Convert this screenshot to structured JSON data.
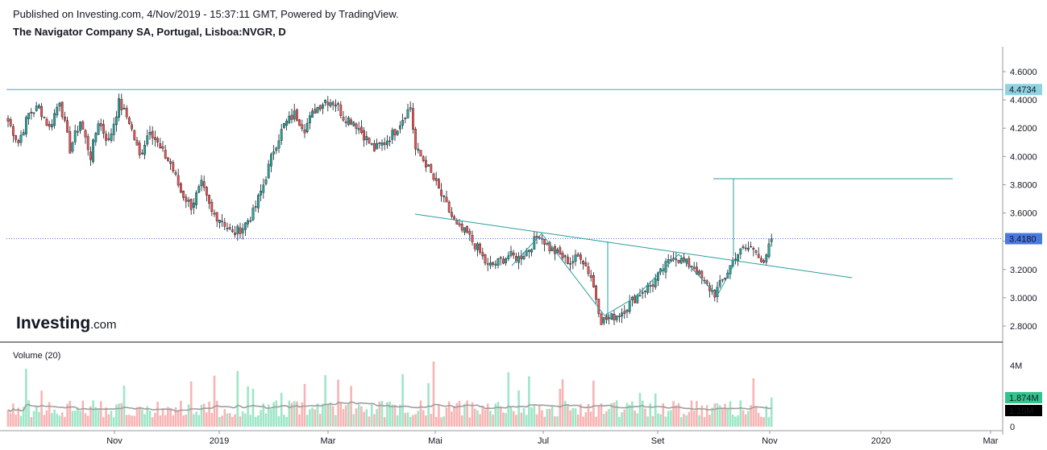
{
  "header": {
    "published": "Published on Investing.com, 4/Nov/2019 - 15:37:11 GMT, Powered by TradingView.",
    "instrument": "The Navigator Company SA, Portugal, Lisboa:NVGR, D"
  },
  "logo": {
    "brand": "Investing",
    "suffix": ".com"
  },
  "volume_panel": {
    "label": "Volume (20)"
  },
  "colors": {
    "up": "#26a69a",
    "down": "#ef5350",
    "up_vol": "#9ee6c8",
    "down_vol": "#f8b4b4",
    "drawing": "#2a9d9d",
    "ma": "#9e9e9e",
    "resistance_tag": "#8fd3e3",
    "price_tag": "#4a78e0",
    "vol_tag": "#31c48d",
    "ma_tag": "#000000"
  },
  "chart_data": [
    {
      "type": "candlestick",
      "title": "The Navigator Company SA, Portugal, Lisboa:NVGR, D",
      "x_labels": [
        "Nov",
        "2019",
        "Mar",
        "Mai",
        "Jul",
        "Set",
        "Nov",
        "2020",
        "Mar"
      ],
      "y_ticks": [
        "4.6000",
        "4.4000",
        "4.2000",
        "4.0000",
        "3.8000",
        "3.6000",
        "3.4000",
        "3.2000",
        "3.0000",
        "2.8000"
      ],
      "ylim": [
        2.75,
        4.7
      ],
      "grid": false,
      "price_tags": {
        "resistance": "4.4734",
        "last": "3.4180"
      },
      "lines": {
        "resistance": 4.4734,
        "last_price": 3.418,
        "target": 3.835
      },
      "anchors": [
        {
          "i": 0,
          "c": 4.25
        },
        {
          "i": 4,
          "c": 4.1
        },
        {
          "i": 8,
          "c": 4.3
        },
        {
          "i": 12,
          "c": 4.35
        },
        {
          "i": 16,
          "c": 4.2
        },
        {
          "i": 20,
          "c": 4.4
        },
        {
          "i": 24,
          "c": 4.05
        },
        {
          "i": 28,
          "c": 4.25
        },
        {
          "i": 32,
          "c": 4.0
        },
        {
          "i": 35,
          "c": 4.25
        },
        {
          "i": 39,
          "c": 4.1
        },
        {
          "i": 43,
          "c": 4.38
        },
        {
          "i": 47,
          "c": 4.25
        },
        {
          "i": 51,
          "c": 4.0
        },
        {
          "i": 55,
          "c": 4.2
        },
        {
          "i": 59,
          "c": 4.05
        },
        {
          "i": 63,
          "c": 3.95
        },
        {
          "i": 67,
          "c": 3.75
        },
        {
          "i": 71,
          "c": 3.65
        },
        {
          "i": 75,
          "c": 3.8
        },
        {
          "i": 79,
          "c": 3.6
        },
        {
          "i": 83,
          "c": 3.55
        },
        {
          "i": 87,
          "c": 3.45
        },
        {
          "i": 91,
          "c": 3.5
        },
        {
          "i": 95,
          "c": 3.6
        },
        {
          "i": 99,
          "c": 3.8
        },
        {
          "i": 103,
          "c": 4.05
        },
        {
          "i": 107,
          "c": 4.22
        },
        {
          "i": 111,
          "c": 4.3
        },
        {
          "i": 115,
          "c": 4.2
        },
        {
          "i": 119,
          "c": 4.33
        },
        {
          "i": 123,
          "c": 4.4
        },
        {
          "i": 127,
          "c": 4.38
        },
        {
          "i": 130,
          "c": 4.28
        },
        {
          "i": 134,
          "c": 4.25
        },
        {
          "i": 138,
          "c": 4.15
        },
        {
          "i": 142,
          "c": 4.05
        },
        {
          "i": 146,
          "c": 4.1
        },
        {
          "i": 150,
          "c": 4.18
        },
        {
          "i": 154,
          "c": 4.3
        },
        {
          "i": 156,
          "c": 4.35
        },
        {
          "i": 158,
          "c": 4.05
        },
        {
          "i": 162,
          "c": 3.95
        },
        {
          "i": 166,
          "c": 3.8
        },
        {
          "i": 170,
          "c": 3.65
        },
        {
          "i": 174,
          "c": 3.5
        },
        {
          "i": 178,
          "c": 3.45
        },
        {
          "i": 182,
          "c": 3.35
        },
        {
          "i": 186,
          "c": 3.22
        },
        {
          "i": 190,
          "c": 3.25
        },
        {
          "i": 194,
          "c": 3.3
        },
        {
          "i": 198,
          "c": 3.28
        },
        {
          "i": 202,
          "c": 3.35
        },
        {
          "i": 206,
          "c": 3.45
        },
        {
          "i": 210,
          "c": 3.35
        },
        {
          "i": 214,
          "c": 3.3
        },
        {
          "i": 218,
          "c": 3.25
        },
        {
          "i": 222,
          "c": 3.3
        },
        {
          "i": 226,
          "c": 3.15
        },
        {
          "i": 228,
          "c": 3.0
        },
        {
          "i": 230,
          "c": 2.84
        },
        {
          "i": 234,
          "c": 2.86
        },
        {
          "i": 238,
          "c": 2.9
        },
        {
          "i": 242,
          "c": 2.98
        },
        {
          "i": 246,
          "c": 3.05
        },
        {
          "i": 250,
          "c": 3.1
        },
        {
          "i": 254,
          "c": 3.2
        },
        {
          "i": 258,
          "c": 3.3
        },
        {
          "i": 262,
          "c": 3.25
        },
        {
          "i": 266,
          "c": 3.22
        },
        {
          "i": 270,
          "c": 3.1
        },
        {
          "i": 274,
          "c": 3.03
        },
        {
          "i": 278,
          "c": 3.15
        },
        {
          "i": 282,
          "c": 3.3
        },
        {
          "i": 286,
          "c": 3.35
        },
        {
          "i": 290,
          "c": 3.35
        },
        {
          "i": 293,
          "c": 3.22
        },
        {
          "i": 296,
          "c": 3.418
        }
      ],
      "ohlc_count": 297
    },
    {
      "type": "bar",
      "title": "Volume (20)",
      "y_ticks": [
        "4M",
        "0"
      ],
      "ylim": [
        0,
        5000000
      ],
      "value_tags": {
        "volume": "1.874M",
        "ma20": "1.15M"
      },
      "last_volume": 1874000,
      "ma20_last": 1150000
    }
  ]
}
